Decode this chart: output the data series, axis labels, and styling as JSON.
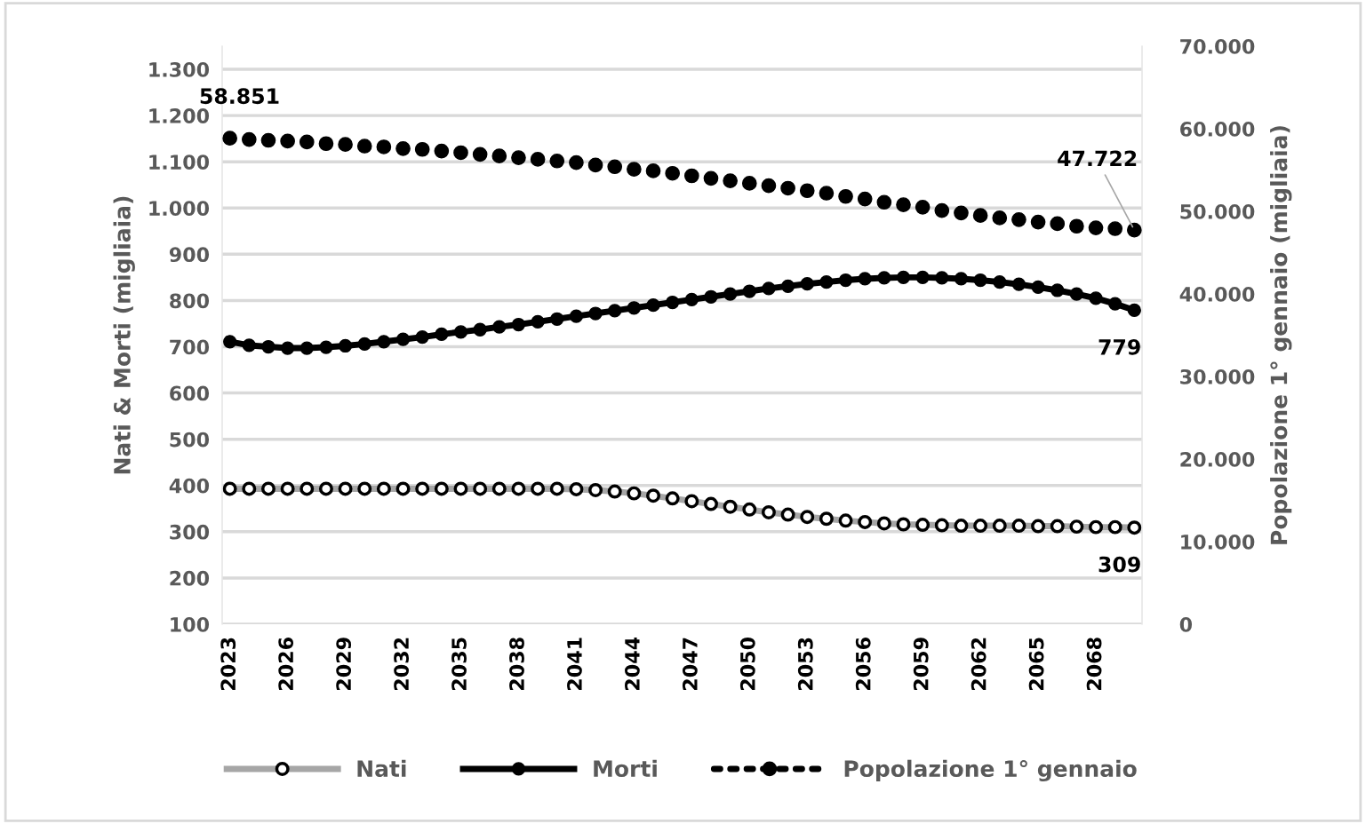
{
  "chart_data": {
    "type": "line",
    "ylabel": "Nati & Morti (migliaia)",
    "y2label": "Popolazione 1° gennaio (migliaia)",
    "x": [
      2023,
      2024,
      2025,
      2026,
      2027,
      2028,
      2029,
      2030,
      2031,
      2032,
      2033,
      2034,
      2035,
      2036,
      2037,
      2038,
      2039,
      2040,
      2041,
      2042,
      2043,
      2044,
      2045,
      2046,
      2047,
      2048,
      2049,
      2050,
      2051,
      2052,
      2053,
      2054,
      2055,
      2056,
      2057,
      2058,
      2059,
      2060,
      2061,
      2062,
      2063,
      2064,
      2065,
      2066,
      2067,
      2068,
      2069,
      2070
    ],
    "series": [
      {
        "name": "Nati",
        "color": "#a6a6a6",
        "marker": "circle",
        "line_style": "solid",
        "values": [
          393,
          393,
          393,
          393,
          393,
          393,
          393,
          393,
          393,
          393,
          393,
          393,
          393,
          393,
          393,
          393,
          393,
          393,
          392,
          390,
          387,
          383,
          378,
          372,
          366,
          360,
          354,
          348,
          342,
          337,
          332,
          328,
          324,
          321,
          318,
          316,
          315,
          314,
          313,
          313,
          313,
          313,
          312,
          312,
          311,
          310,
          310,
          309
        ],
        "value_labels": [
          null,
          null,
          null,
          null,
          null,
          null,
          null,
          null,
          null,
          null,
          null,
          null,
          null,
          null,
          null,
          null,
          null,
          null,
          null,
          null,
          null,
          null,
          null,
          null,
          null,
          null,
          null,
          null,
          null,
          null,
          null,
          null,
          null,
          null,
          null,
          null,
          null,
          null,
          null,
          null,
          null,
          null,
          null,
          null,
          null,
          null,
          null,
          "309"
        ]
      },
      {
        "name": "Morti",
        "color": "#000000",
        "marker": "circle",
        "line_style": "solid",
        "values": [
          711,
          703,
          700,
          697,
          697,
          699,
          702,
          706,
          711,
          716,
          721,
          727,
          732,
          737,
          743,
          748,
          754,
          760,
          766,
          772,
          778,
          784,
          790,
          796,
          802,
          808,
          814,
          820,
          826,
          831,
          836,
          840,
          844,
          847,
          849,
          850,
          850,
          849,
          847,
          844,
          840,
          835,
          829,
          822,
          814,
          805,
          793,
          779
        ],
        "value_labels": [
          null,
          null,
          null,
          null,
          null,
          null,
          null,
          null,
          null,
          null,
          null,
          null,
          null,
          null,
          null,
          null,
          null,
          null,
          null,
          null,
          null,
          null,
          null,
          null,
          null,
          null,
          null,
          null,
          null,
          null,
          null,
          null,
          null,
          null,
          null,
          null,
          null,
          null,
          null,
          null,
          null,
          null,
          null,
          null,
          null,
          null,
          null,
          "779"
        ]
      },
      {
        "name": "Popolazione 1° gennaio",
        "type": "scatter",
        "color": "#000000",
        "marker": "circle",
        "axis": "y2",
        "values": [
          58851,
          58700,
          58600,
          58500,
          58400,
          58200,
          58100,
          57900,
          57800,
          57600,
          57500,
          57300,
          57100,
          56900,
          56700,
          56500,
          56300,
          56100,
          55900,
          55600,
          55400,
          55100,
          54900,
          54600,
          54300,
          54000,
          53700,
          53400,
          53100,
          52800,
          52500,
          52200,
          51800,
          51500,
          51100,
          50800,
          50500,
          50100,
          49800,
          49500,
          49200,
          49000,
          48700,
          48500,
          48200,
          48000,
          47900,
          47722
        ],
        "value_labels": [
          "58.851",
          null,
          null,
          null,
          null,
          null,
          null,
          null,
          null,
          null,
          null,
          null,
          null,
          null,
          null,
          null,
          null,
          null,
          null,
          null,
          null,
          null,
          null,
          null,
          null,
          null,
          null,
          null,
          null,
          null,
          null,
          null,
          null,
          null,
          null,
          null,
          null,
          null,
          null,
          null,
          null,
          null,
          null,
          null,
          null,
          null,
          null,
          "47.722"
        ]
      }
    ],
    "xlim": [
      2022.6,
      2070.4
    ],
    "xticks": [
      2023,
      2026,
      2029,
      2032,
      2035,
      2038,
      2041,
      2044,
      2047,
      2050,
      2053,
      2056,
      2059,
      2062,
      2065,
      2068
    ],
    "ylim": [
      100,
      1350
    ],
    "yticks": [
      100,
      200,
      300,
      400,
      500,
      600,
      700,
      800,
      900,
      {
        "value": 1000,
        "label": "1.000"
      },
      {
        "value": 1100,
        "label": "1.100"
      },
      {
        "value": 1200,
        "label": "1.200"
      },
      {
        "value": 1300,
        "label": "1.300"
      }
    ],
    "y2lim": [
      0,
      70000
    ],
    "y2ticks": [
      0,
      {
        "value": 10000,
        "label": "10.000"
      },
      {
        "value": 20000,
        "label": "20.000"
      },
      {
        "value": 30000,
        "label": "30.000"
      },
      {
        "value": 40000,
        "label": "40.000"
      },
      {
        "value": 50000,
        "label": "50.000"
      },
      {
        "value": 60000,
        "label": "60.000"
      },
      {
        "value": 70000,
        "label": "70.000"
      }
    ],
    "grid": "y",
    "legend": "bottom"
  }
}
